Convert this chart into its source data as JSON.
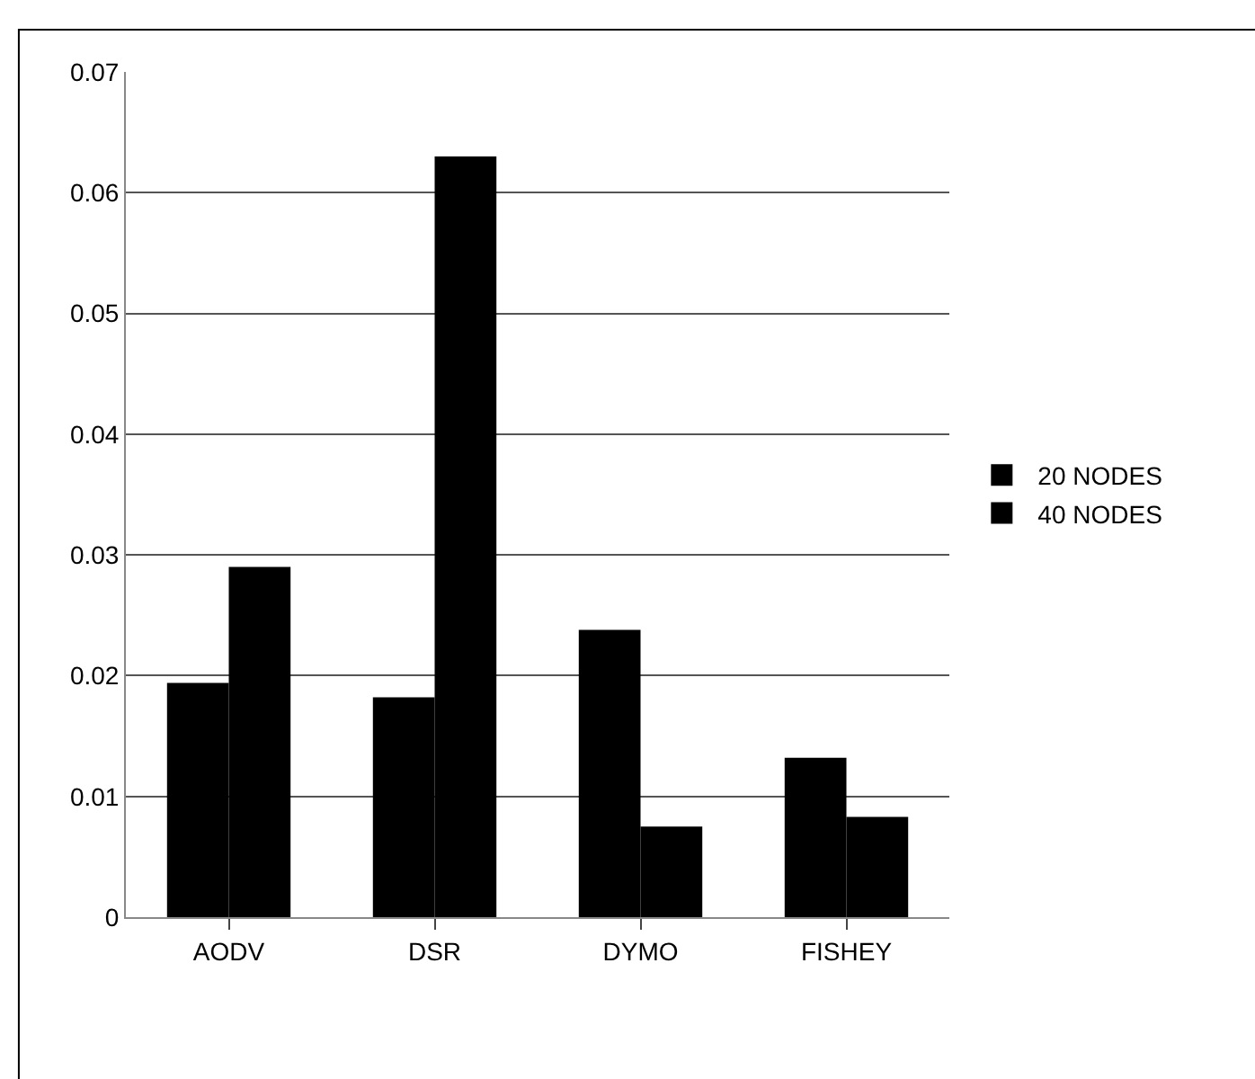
{
  "chart_data": {
    "type": "bar",
    "categories": [
      "AODV",
      "DSR",
      "DYMO",
      "FISHEY"
    ],
    "series": [
      {
        "name": "20 NODES",
        "color": "#000000",
        "values": [
          0.0194,
          0.0182,
          0.0238,
          0.0132
        ]
      },
      {
        "name": "40 NODES",
        "color": "#000000",
        "values": [
          0.029,
          0.063,
          0.0075,
          0.0083
        ]
      }
    ],
    "ylim": [
      0,
      0.07
    ],
    "yticks": [
      {
        "value": 0,
        "label": "0"
      },
      0.01,
      0.02,
      0.03,
      0.04,
      0.05,
      0.06,
      0.07
    ],
    "grid": "y",
    "legend": "right"
  }
}
